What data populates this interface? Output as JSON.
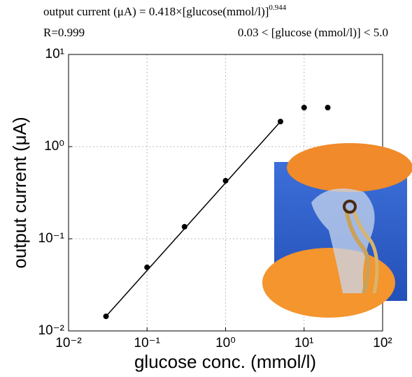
{
  "chart_data": {
    "type": "scatter",
    "title": "output current (μA) = 0.418×[glucose(mmol/l)]",
    "title_exponent": "0.944",
    "subtitle_left": "R=0.999",
    "subtitle_right": "0.03 < [glucose (mmol/l)] < 5.0",
    "xlabel": "glucose conc. (mmol/l)",
    "ylabel": "output current (μA)",
    "x": [
      0.03,
      0.1,
      0.3,
      1,
      5,
      10,
      20
    ],
    "values": [
      0.0144,
      0.049,
      0.135,
      0.426,
      1.87,
      2.65,
      2.65
    ],
    "color": "#000000",
    "fit": {
      "x": [
        0.03,
        5
      ],
      "y": [
        0.0144,
        1.87
      ]
    },
    "xscale": "log",
    "yscale": "log",
    "xlim": [
      0.01,
      100
    ],
    "ylim": [
      0.01,
      10
    ],
    "xticks": [
      {
        "value": 0.01,
        "label": "10⁻²"
      },
      {
        "value": 0.1,
        "label": "10⁻¹"
      },
      {
        "value": 1,
        "label": "10⁰"
      },
      {
        "value": 10,
        "label": "10¹"
      },
      {
        "value": 100,
        "label": "10²"
      }
    ],
    "yticks": [
      {
        "value": 0.01,
        "label": "10⁻²"
      },
      {
        "value": 0.1,
        "label": "10⁻¹"
      },
      {
        "value": 1,
        "label": "10⁰"
      },
      {
        "value": 10,
        "label": "10¹"
      }
    ],
    "grid": true
  }
}
